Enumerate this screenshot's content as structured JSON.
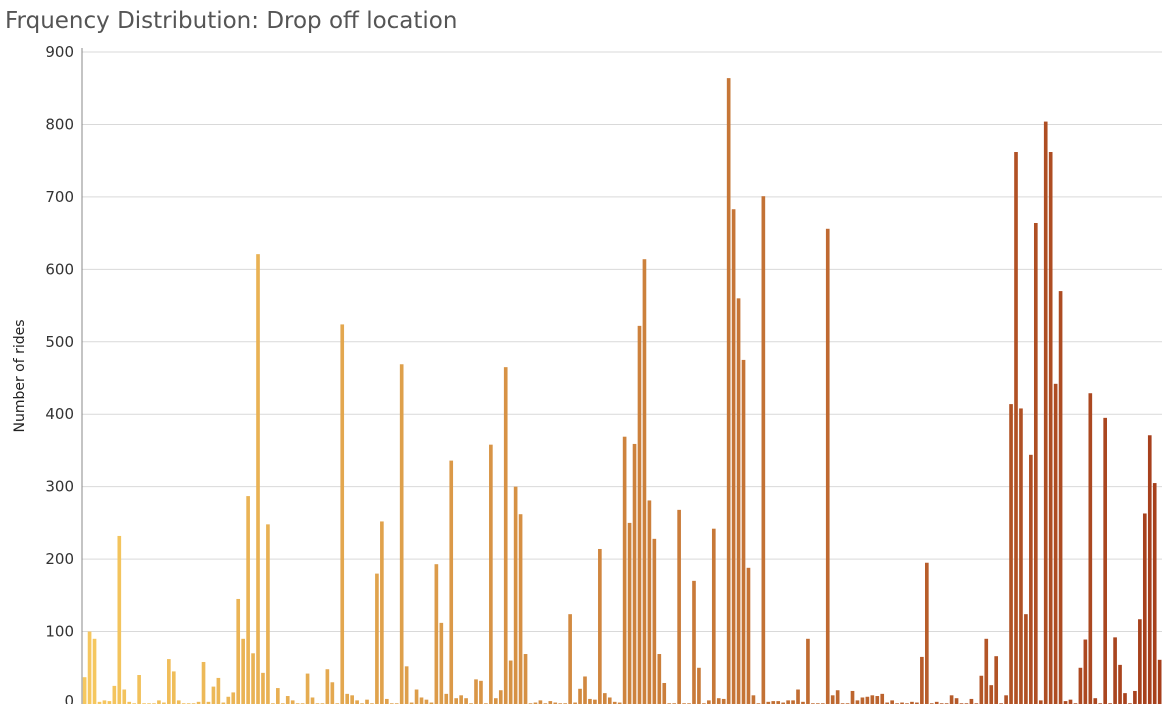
{
  "chart_data": {
    "type": "bar",
    "title": "Frquency Distribution: Drop off location",
    "ylabel": "Number of rides",
    "xlabel": "",
    "ylim": [
      0,
      900
    ],
    "yticks": [
      "900",
      "800",
      "700",
      "600",
      "500",
      "400",
      "300",
      "200",
      "100",
      "0"
    ],
    "grid": true,
    "color_start": "#f6c85f",
    "color_end": "#a63f1c",
    "values": [
      37,
      100,
      90,
      3,
      5,
      4,
      25,
      232,
      20,
      3,
      1,
      40,
      1,
      1,
      1,
      5,
      2,
      62,
      45,
      5,
      1,
      1,
      1,
      3,
      58,
      3,
      24,
      36,
      2,
      10,
      16,
      145,
      90,
      287,
      70,
      621,
      43,
      248,
      1,
      22,
      1,
      11,
      5,
      1,
      1,
      42,
      9,
      1,
      1,
      48,
      30,
      1,
      524,
      14,
      12,
      5,
      1,
      6,
      1,
      180,
      252,
      7,
      1,
      1,
      469,
      52,
      2,
      20,
      9,
      6,
      2,
      193,
      112,
      14,
      336,
      8,
      12,
      8,
      1,
      34,
      32,
      1,
      358,
      8,
      19,
      465,
      60,
      300,
      262,
      69,
      1,
      2,
      5,
      1,
      4,
      2,
      1,
      1,
      124,
      2,
      21,
      38,
      7,
      6,
      214,
      15,
      9,
      3,
      2,
      369,
      250,
      359,
      522,
      614,
      281,
      228,
      69,
      29,
      1,
      1,
      268,
      1,
      1,
      170,
      50,
      1,
      5,
      242,
      8,
      7,
      864,
      683,
      560,
      475,
      188,
      12,
      1,
      701,
      3,
      4,
      4,
      2,
      5,
      5,
      20,
      3,
      90,
      1,
      1,
      1,
      656,
      12,
      19,
      1,
      1,
      18,
      5,
      9,
      10,
      12,
      11,
      14,
      2,
      5,
      1,
      2,
      1,
      3,
      2,
      65,
      195,
      1,
      3,
      1,
      1,
      12,
      8,
      1,
      1,
      7,
      1,
      39,
      90,
      26,
      66,
      1,
      12,
      414,
      762,
      408,
      124,
      344,
      664,
      5,
      804,
      762,
      442,
      570,
      4,
      6,
      1,
      50,
      89,
      429,
      8,
      1,
      395,
      1,
      92,
      54,
      15,
      1,
      18,
      117,
      263,
      371,
      305,
      61
    ]
  }
}
